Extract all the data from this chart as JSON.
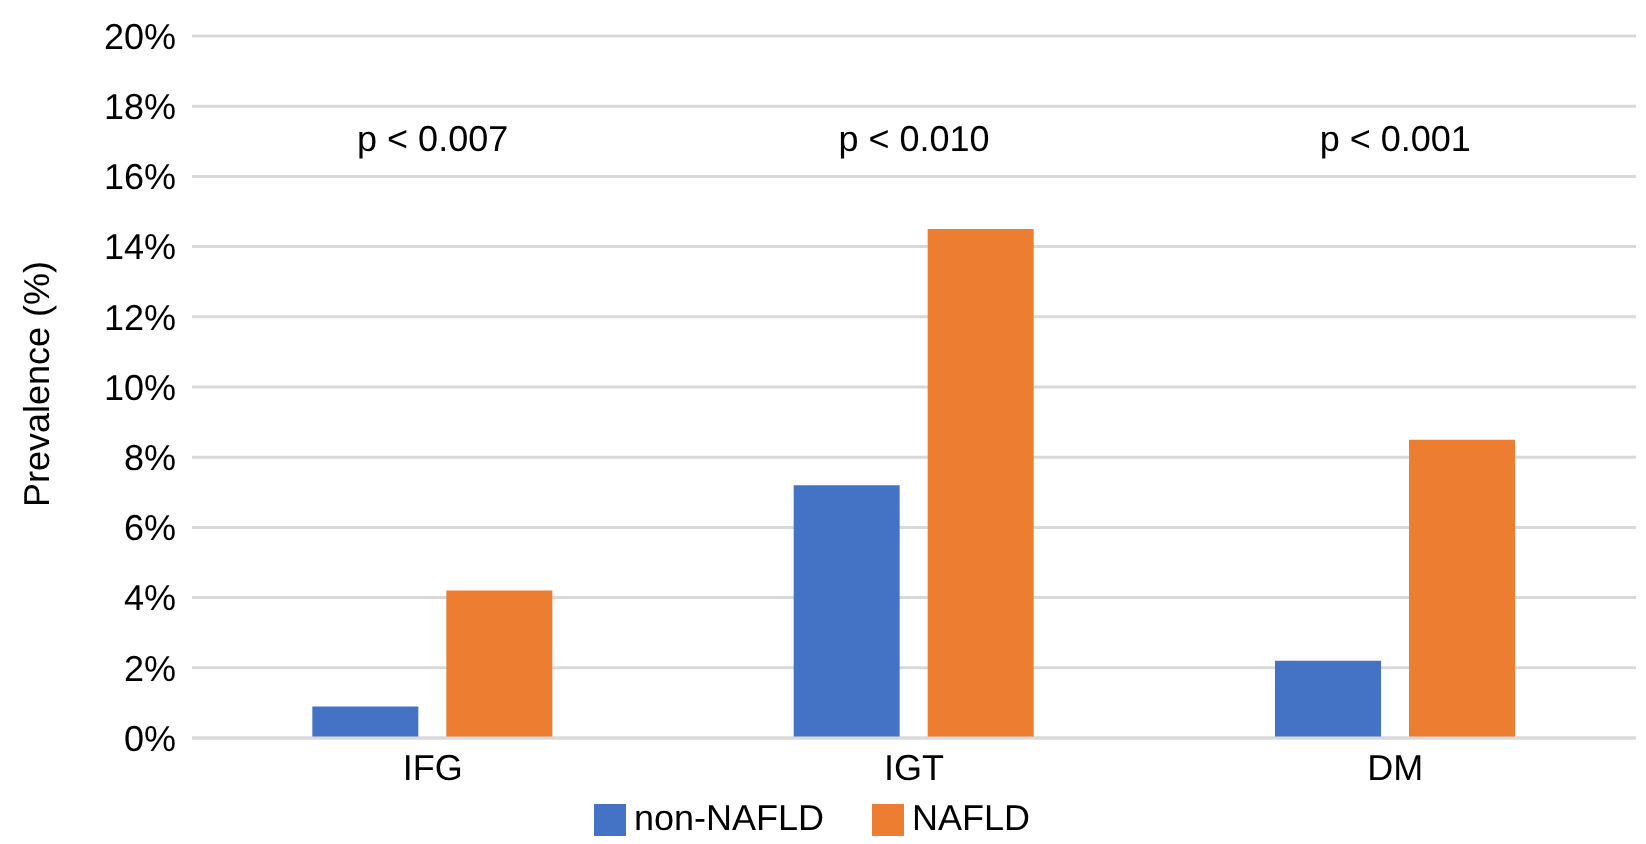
{
  "chart_data": {
    "type": "bar",
    "ylabel": "Prevalence (%)",
    "categories": [
      "IFG",
      "IGT",
      "DM"
    ],
    "series": [
      {
        "name": "non-NAFLD",
        "color": "#4472c4",
        "values": [
          0.9,
          7.2,
          2.2
        ]
      },
      {
        "name": "NAFLD",
        "color": "#ed7d31",
        "values": [
          4.2,
          14.5,
          8.5
        ]
      }
    ],
    "ylim": [
      0,
      20
    ],
    "yticks": [
      {
        "value": 0,
        "label": "0%"
      },
      {
        "value": 2,
        "label": "2%"
      },
      {
        "value": 4,
        "label": "4%"
      },
      {
        "value": 6,
        "label": "6%"
      },
      {
        "value": 8,
        "label": "8%"
      },
      {
        "value": 10,
        "label": "10%"
      },
      {
        "value": 12,
        "label": "12%"
      },
      {
        "value": 14,
        "label": "14%"
      },
      {
        "value": 16,
        "label": "16%"
      },
      {
        "value": 18,
        "label": "18%"
      },
      {
        "value": 20,
        "label": "20%"
      }
    ],
    "annotations": [
      "p < 0.007",
      "p < 0.010",
      "p < 0.001"
    ],
    "grid": "y",
    "legend": "bottom"
  }
}
